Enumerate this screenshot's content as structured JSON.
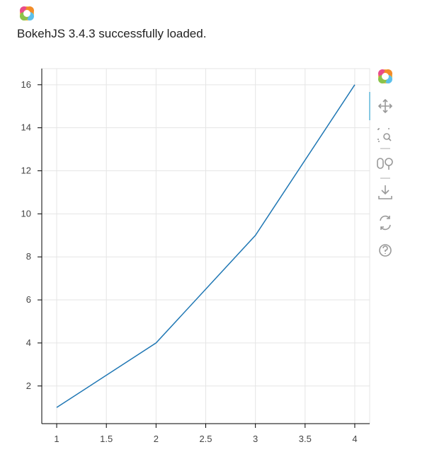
{
  "message": "BokehJS 3.4.3 successfully loaded.",
  "chart_data": {
    "type": "line",
    "x": [
      1,
      2,
      3,
      4
    ],
    "series": [
      {
        "color": "#1f77b4",
        "values": [
          1,
          4,
          9,
          16
        ]
      }
    ],
    "xlim": [
      0.85,
      4.15
    ],
    "ylim": [
      0.25,
      16.75
    ],
    "xticks": [
      1,
      1.5,
      2,
      2.5,
      3,
      3.5,
      4
    ],
    "yticks": [
      2,
      4,
      6,
      8,
      10,
      12,
      14,
      16
    ],
    "grid": true
  }
}
